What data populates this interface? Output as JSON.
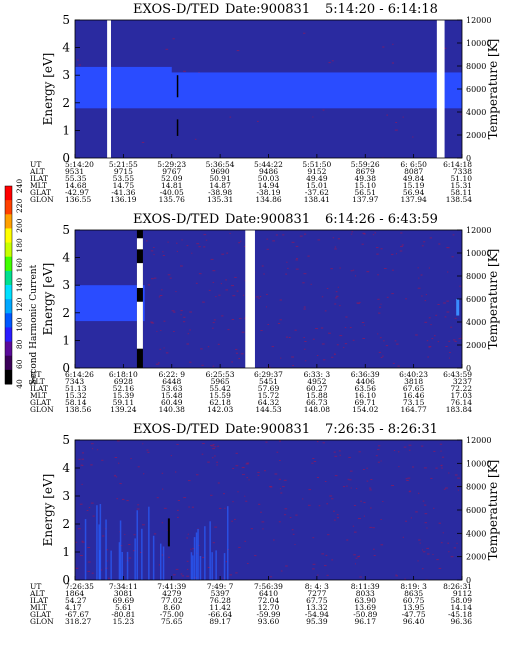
{
  "colorbar": {
    "label": "Second Harmonic Current",
    "ticks": [
      "40",
      "60",
      "80",
      "100",
      "120",
      "140",
      "160",
      "180",
      "200",
      "220",
      "240"
    ],
    "colors": [
      "#000000",
      "#3a0058",
      "#5a0a9a",
      "#2a1cff",
      "#0058ff",
      "#00a8ff",
      "#00e0ff",
      "#00e090",
      "#40ff00",
      "#c8ff00",
      "#ffff00",
      "#ffa000",
      "#ff4000",
      "#ff0000"
    ]
  },
  "colors": {
    "background": "#2a2aa0",
    "band": "#2a4cff",
    "gap": "#ffffff",
    "speckle": "#8a1a60"
  },
  "panels": [
    {
      "title": "EXOS-D/TED",
      "date": "Date:900831",
      "time_range": "5:14:20 - 6:14:18",
      "ylabel_left": "Energy [eV]",
      "ylabel_right": "Temperature [K]",
      "yticks_left": [
        "0",
        "1",
        "2",
        "3",
        "4",
        "5"
      ],
      "yticks_right": [
        "0",
        "2000",
        "4000",
        "6000",
        "8000",
        "10000",
        "12000"
      ],
      "row_labels": [
        "UT",
        "ALT",
        "ILAT",
        "MLT",
        "GLAT",
        "GLON"
      ],
      "columns": [
        [
          "5:14:20",
          "9531",
          "55.35",
          "14.68",
          "-42.97",
          "136.55"
        ],
        [
          "5:21:55",
          "9715",
          "53.55",
          "14.75",
          "-41.36",
          "136.19"
        ],
        [
          "5:29:23",
          "9767",
          "52.09",
          "14.81",
          "-40.05",
          "135.76"
        ],
        [
          "5:36:54",
          "9690",
          "50.91",
          "14.87",
          "-38.98",
          "135.31"
        ],
        [
          "5:44:22",
          "9486",
          "50.03",
          "14.94",
          "-38.19",
          "134.86"
        ],
        [
          "5:51:50",
          "9152",
          "49.49",
          "15.01",
          "-37.62",
          "138.41"
        ],
        [
          "5:59:26",
          "8679",
          "49.38",
          "15.10",
          "56.51",
          "137.97"
        ],
        [
          "6: 6:50",
          "8087",
          "49.84",
          "15.19",
          "56.94",
          "137.94"
        ],
        [
          "6:14:18",
          "7338",
          "51.10",
          "15.31",
          "58.11",
          "138.54"
        ]
      ]
    },
    {
      "title": "EXOS-D/TED",
      "date": "Date:900831",
      "time_range": "6:14:26 - 6:43:59",
      "ylabel_left": "Energy [eV]",
      "ylabel_right": "Temperature [K]",
      "yticks_left": [
        "0",
        "1",
        "2",
        "3",
        "4",
        "5"
      ],
      "yticks_right": [
        "0",
        "2000",
        "4000",
        "6000",
        "8000",
        "10000",
        "12000"
      ],
      "row_labels": [
        "UT",
        "ALT",
        "ILAT",
        "MLT",
        "GLAT",
        "GLON"
      ],
      "columns": [
        [
          "6:14:26",
          "7343",
          "51.13",
          "15.32",
          "58.14",
          "138.56"
        ],
        [
          "6:18:10",
          "6928",
          "52.16",
          "15.39",
          "59.11",
          "139.24"
        ],
        [
          "6:22: 9",
          "6448",
          "53.63",
          "15.48",
          "60.49",
          "140.38"
        ],
        [
          "6:25:53",
          "5965",
          "55.42",
          "15.59",
          "62.18",
          "142.03"
        ],
        [
          "6:29:37",
          "5451",
          "57.69",
          "15.72",
          "64.32",
          "144.53"
        ],
        [
          "6:33: 3",
          "4952",
          "60.27",
          "15.88",
          "66.73",
          "148.08"
        ],
        [
          "6:36:39",
          "4406",
          "63.56",
          "16.10",
          "69.71",
          "154.02"
        ],
        [
          "6:40:23",
          "3818",
          "67.65",
          "16.46",
          "73.15",
          "164.77"
        ],
        [
          "6:43:59",
          "3237",
          "72.22",
          "17.03",
          "76.14",
          "183.84"
        ]
      ]
    },
    {
      "title": "EXOS-D/TED",
      "date": "Date:900831",
      "time_range": "7:26:35 - 8:26:31",
      "ylabel_left": "Energy [eV]",
      "ylabel_right": "Temperature [K]",
      "yticks_left": [
        "0",
        "1",
        "2",
        "3",
        "4",
        "5"
      ],
      "yticks_right": [
        "0",
        "2000",
        "4000",
        "6000",
        "8000",
        "10000",
        "12000"
      ],
      "row_labels": [
        "UT",
        "ALT",
        "ILAT",
        "MLT",
        "GLAT",
        "GLON"
      ],
      "columns": [
        [
          "7:26:35",
          "1864",
          "54.27",
          "4.17",
          "-67.67",
          "318.27"
        ],
        [
          "7:34:11",
          "3081",
          "69.69",
          "5.61",
          "-80.81",
          "15.23"
        ],
        [
          "7:41:39",
          "4279",
          "77.02",
          "8.60",
          "-75.00",
          "75.65"
        ],
        [
          "7:49: 7",
          "5397",
          "76.28",
          "11.42",
          "-66.64",
          "89.17"
        ],
        [
          "7:56:39",
          "6410",
          "72.04",
          "12.70",
          "-59.99",
          "93.60"
        ],
        [
          "8: 4: 3",
          "7277",
          "67.75",
          "13.32",
          "-54.94",
          "95.39"
        ],
        [
          "8:11:39",
          "8033",
          "63.90",
          "13.69",
          "-50.89",
          "96.17"
        ],
        [
          "8:19: 3",
          "8635",
          "60.75",
          "13.95",
          "-47.75",
          "96.40"
        ],
        [
          "8:26:31",
          "9112",
          "58.09",
          "14.14",
          "-45.18",
          "96.36"
        ]
      ]
    }
  ],
  "chart_data": [
    {
      "type": "heatmap",
      "title": "EXOS-D/TED",
      "subtitle": "Date:900831  5:14:20 - 6:14:18",
      "ylabel": "Energy [eV]",
      "ylabel_right": "Temperature [K]",
      "ylim": [
        0,
        5
      ],
      "ylim_right": [
        0,
        12000
      ],
      "band_ev": [
        1.8,
        3.1
      ],
      "gaps_fraction": [
        [
          0.083,
          0.093
        ],
        [
          0.935,
          0.955
        ]
      ]
    },
    {
      "type": "heatmap",
      "title": "EXOS-D/TED",
      "subtitle": "Date:900831  6:14:26 - 6:43:59",
      "ylabel": "Energy [eV]",
      "ylabel_right": "Temperature [K]",
      "ylim": [
        0,
        5
      ],
      "ylim_right": [
        0,
        12000
      ],
      "band_ev": [
        1.7,
        3.0
      ],
      "band_end_fraction": 0.18,
      "gaps_fraction": [
        [
          0.44,
          0.465
        ]
      ]
    },
    {
      "type": "heatmap",
      "title": "EXOS-D/TED",
      "subtitle": "Date:900831  7:26:35 - 8:26:31",
      "ylabel": "Energy [eV]",
      "ylabel_right": "Temperature [K]",
      "ylim": [
        0,
        5
      ],
      "ylim_right": [
        0,
        12000
      ]
    }
  ]
}
